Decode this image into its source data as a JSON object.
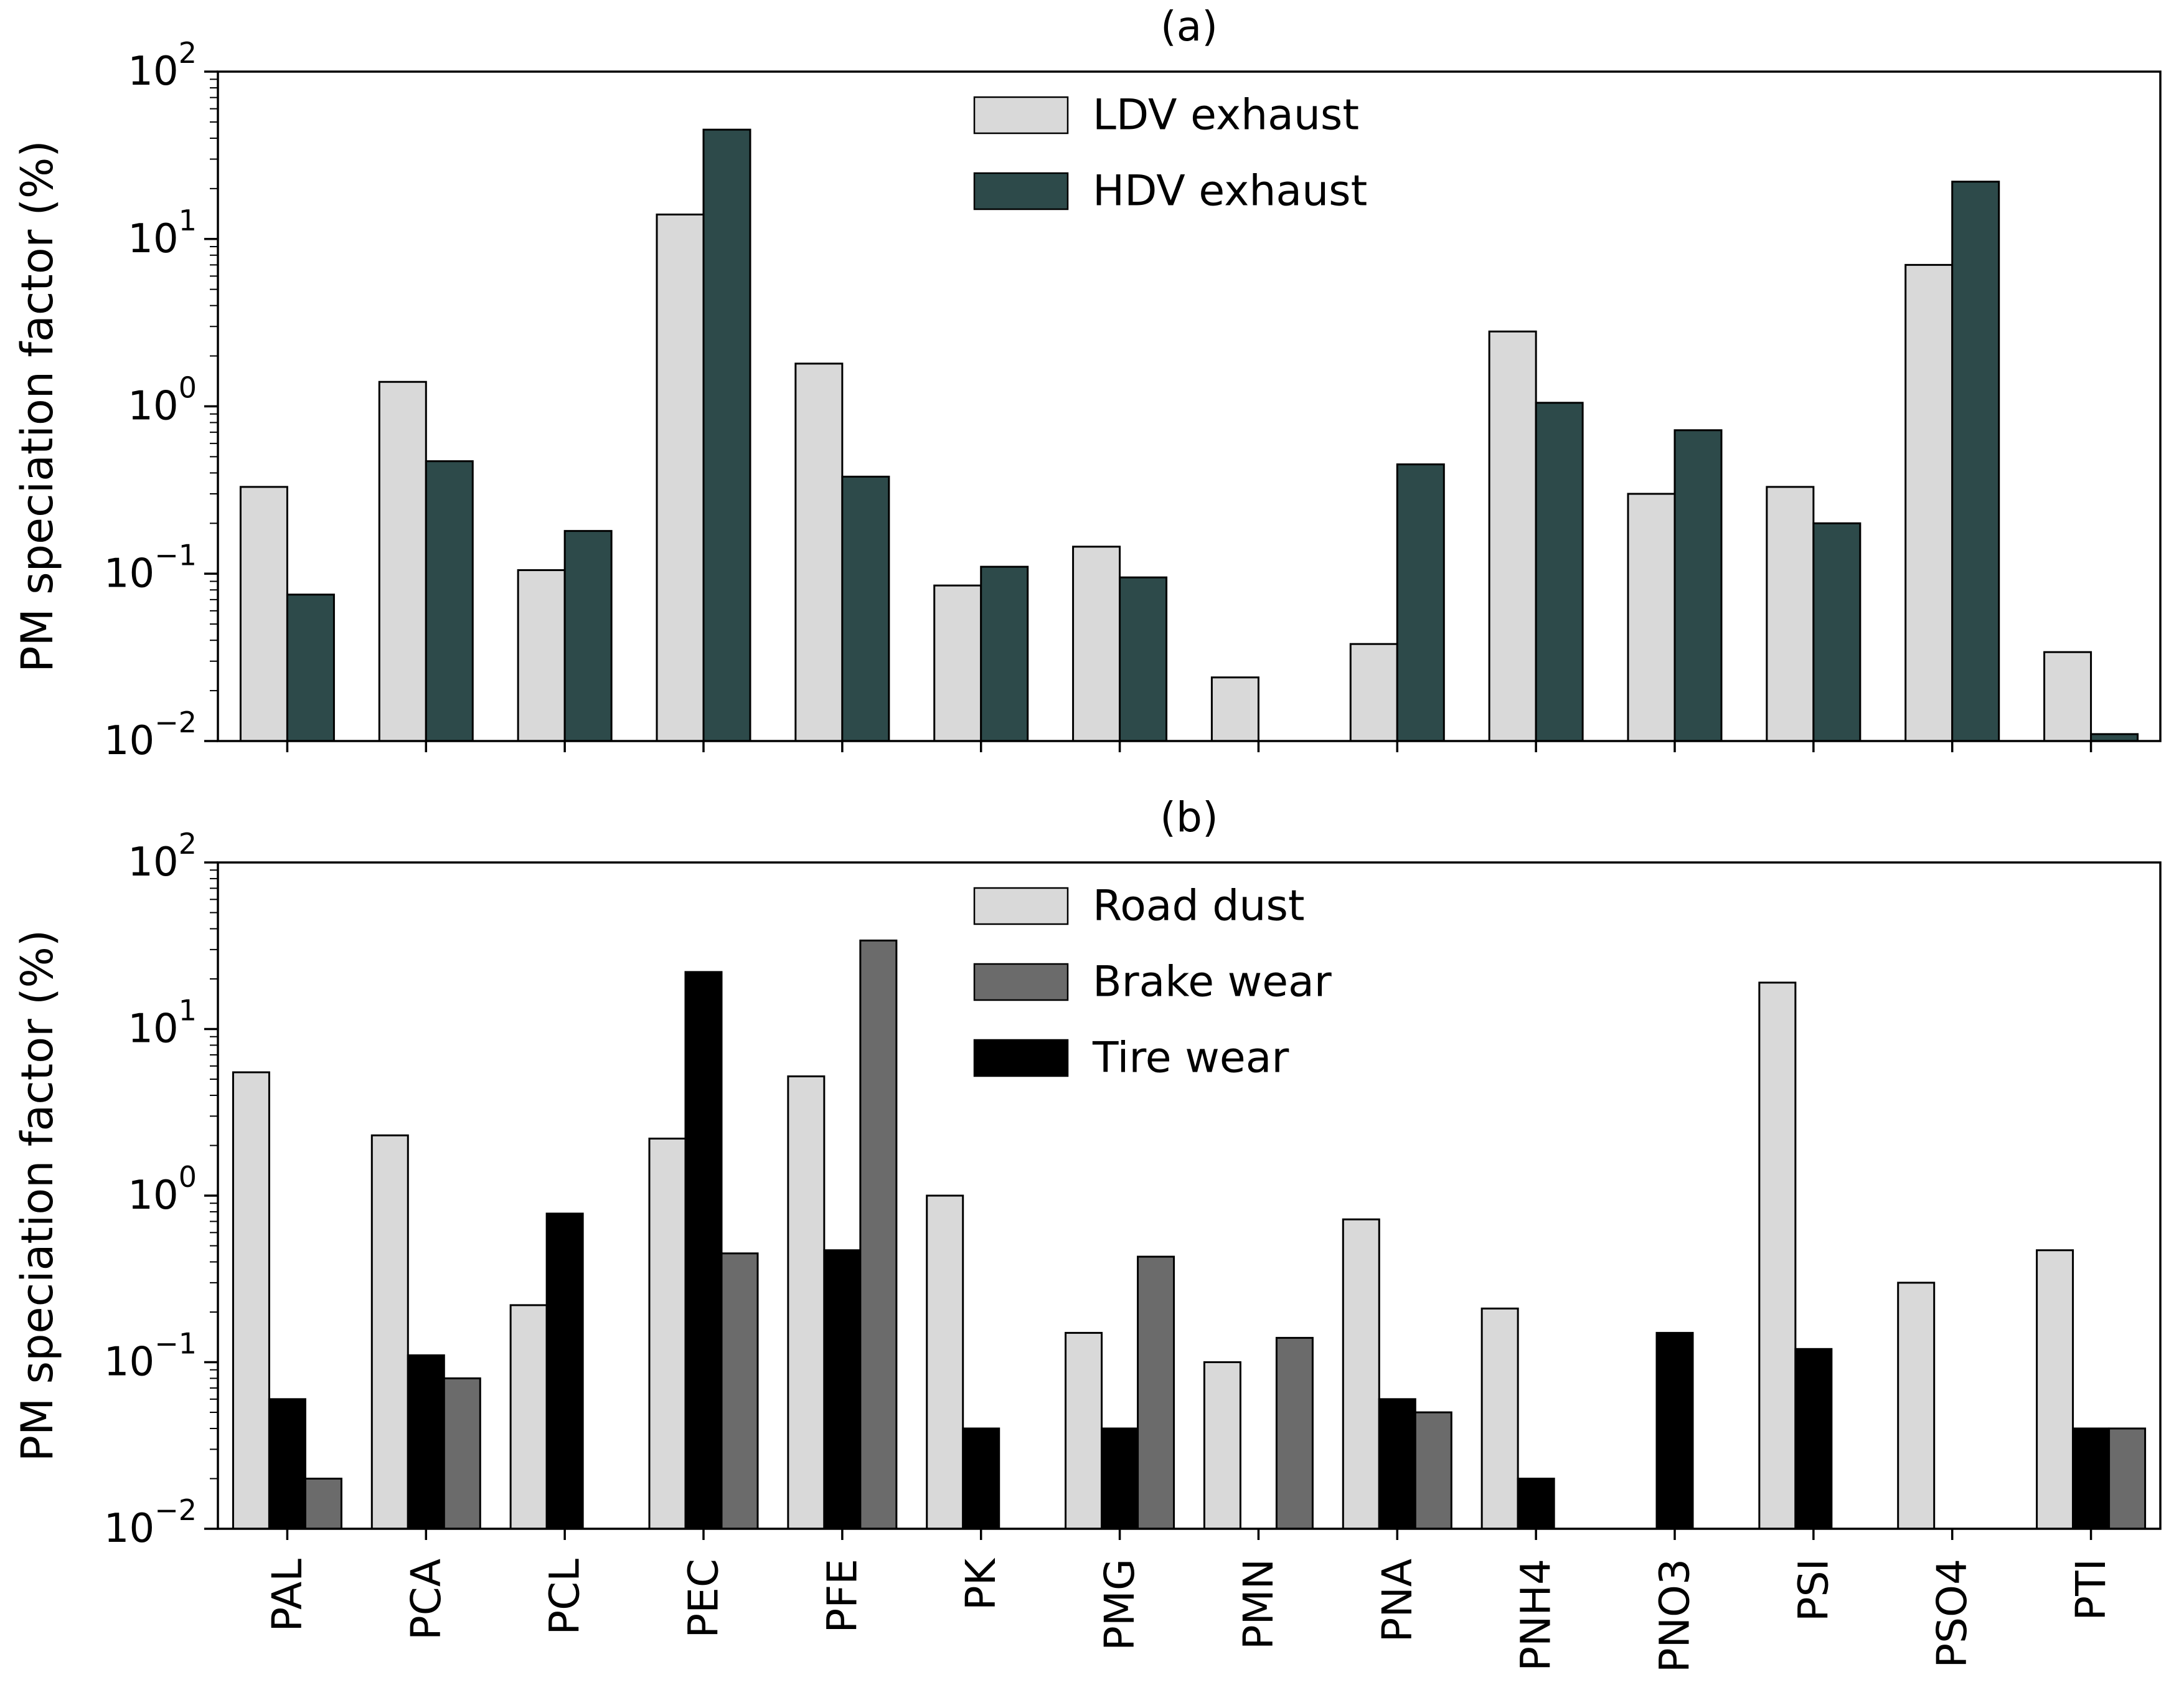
{
  "figure": {
    "background": "#ffffff",
    "text_color": "#000000",
    "axis_color": "#000000"
  },
  "chart_data": [
    {
      "type": "bar",
      "panel_label": "(a)",
      "title": "(a)",
      "ylabel": "PM speciation factor (%)",
      "xlabel": "",
      "yscale": "log",
      "ylim": [
        0.01,
        100
      ],
      "y_tick_exponents": [
        -2,
        -1,
        0,
        1,
        2
      ],
      "grid": false,
      "legend_position": "upper-center-inside",
      "show_x_tick_labels": false,
      "bar_edge_color": "#000000",
      "categories": [
        "PAL",
        "PCA",
        "PCL",
        "PEC",
        "PFE",
        "PK",
        "PMG",
        "PMN",
        "PNA",
        "PNH4",
        "PNO3",
        "PSI",
        "PSO4",
        "PTI"
      ],
      "series": [
        {
          "name": "LDV exhaust",
          "color": "#d9d9d9",
          "values": [
            0.33,
            1.4,
            0.105,
            14,
            1.8,
            0.085,
            0.145,
            0.024,
            0.038,
            2.8,
            0.3,
            0.33,
            7.0,
            0.034
          ]
        },
        {
          "name": "HDV exhaust",
          "color": "#2d4a4a",
          "values": [
            0.075,
            0.47,
            0.18,
            45,
            0.38,
            0.11,
            0.095,
            null,
            0.45,
            1.05,
            0.72,
            0.2,
            22,
            0.011
          ]
        }
      ],
      "legend_series_indexes": [
        0,
        1
      ]
    },
    {
      "type": "bar",
      "panel_label": "(b)",
      "title": "(b)",
      "ylabel": "PM speciation factor (%)",
      "xlabel": "",
      "yscale": "log",
      "ylim": [
        0.01,
        100
      ],
      "y_tick_exponents": [
        -2,
        -1,
        0,
        1,
        2
      ],
      "grid": false,
      "legend_position": "upper-center-inside",
      "show_x_tick_labels": true,
      "bar_edge_color": "#000000",
      "categories": [
        "PAL",
        "PCA",
        "PCL",
        "PEC",
        "PFE",
        "PK",
        "PMG",
        "PMN",
        "PNA",
        "PNH4",
        "PNO3",
        "PSI",
        "PSO4",
        "PTI"
      ],
      "series": [
        {
          "name": "Road dust",
          "color": "#d9d9d9",
          "values": [
            5.5,
            2.3,
            0.22,
            2.2,
            5.2,
            1.0,
            0.15,
            0.1,
            0.72,
            0.21,
            null,
            19,
            0.3,
            0.47
          ]
        },
        {
          "name": "Tire wear",
          "color": "#000000",
          "values": [
            0.06,
            0.11,
            0.78,
            22,
            0.47,
            0.04,
            0.04,
            null,
            0.06,
            0.02,
            0.15,
            0.12,
            null,
            0.04
          ]
        },
        {
          "name": "Brake wear",
          "color": "#6b6b6b",
          "values": [
            0.02,
            0.08,
            null,
            0.45,
            34,
            null,
            0.43,
            0.14,
            0.05,
            null,
            null,
            null,
            null,
            0.04
          ]
        }
      ],
      "legend_series_indexes": [
        0,
        2,
        1
      ]
    }
  ]
}
